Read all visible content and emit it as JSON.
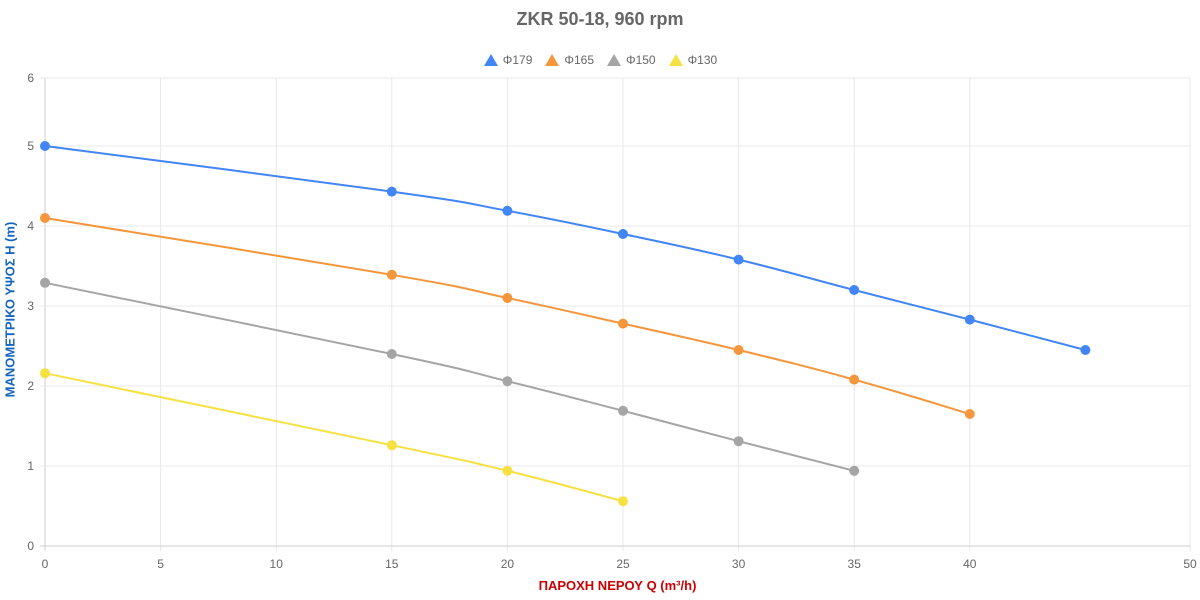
{
  "chart_data": {
    "type": "line",
    "title": "ZKR 50-18, 960 rpm",
    "xlabel": "ΠΑΡΟΧΗ ΝΕΡΟΥ Q (m³/h)",
    "ylabel": "ΜΑΝΟΜΕΤΡΙΚΟ ΥΨΟΣ H (m)",
    "xlim": [
      0,
      50
    ],
    "ylim": [
      0,
      6
    ],
    "x_ticks": [
      "0",
      "5",
      "10",
      "15",
      "20",
      "25",
      "30",
      "35",
      "40",
      "50"
    ],
    "y_ticks": [
      "0",
      "1",
      "2",
      "3",
      "4",
      "5",
      "6"
    ],
    "grid": true,
    "legend_position": "top",
    "series": [
      {
        "name": "Φ179",
        "color": "#4285f4",
        "x": [
          0,
          15,
          20,
          25,
          30,
          35,
          40,
          45
        ],
        "y": [
          5.0,
          4.43,
          4.19,
          3.9,
          3.58,
          3.2,
          2.83,
          2.45
        ]
      },
      {
        "name": "Φ165",
        "color": "#f4963c",
        "x": [
          0,
          15,
          20,
          25,
          30,
          35,
          40
        ],
        "y": [
          4.1,
          3.39,
          3.1,
          2.78,
          2.45,
          2.08,
          1.65
        ]
      },
      {
        "name": "Φ150",
        "color": "#a5a5a5",
        "x": [
          0,
          15,
          20,
          25,
          30,
          35
        ],
        "y": [
          3.29,
          2.4,
          2.06,
          1.69,
          1.31,
          0.94
        ]
      },
      {
        "name": "Φ130",
        "color": "#f5e242",
        "x": [
          0,
          15,
          20,
          25
        ],
        "y": [
          2.16,
          1.26,
          0.94,
          0.56
        ]
      }
    ]
  }
}
